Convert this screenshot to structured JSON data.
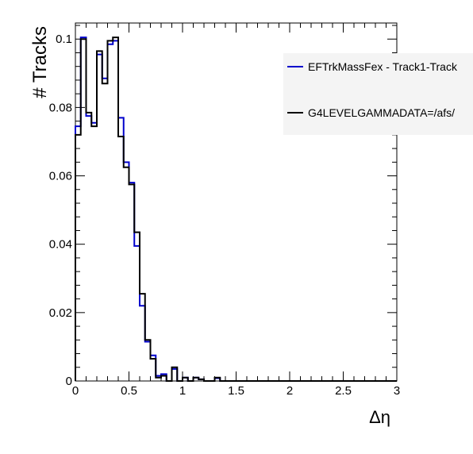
{
  "chart_data": {
    "type": "histogram",
    "xlabel": "Δη",
    "ylabel": "# Tracks",
    "xlim": [
      0,
      3
    ],
    "ylim": [
      0,
      0.1
    ],
    "bin_width": 0.05,
    "x_ticks": [
      "0",
      "0.5",
      "1",
      "1.5",
      "2",
      "2.5",
      "3"
    ],
    "y_ticks": [
      "0",
      "0.02",
      "0.04",
      "0.06",
      "0.08",
      "0.1"
    ],
    "grid": false,
    "legend_position": "right",
    "series": [
      {
        "name": "EFTrkMassFex - Track1-Track",
        "color": "#0000cc",
        "values": [
          0.0745,
          0.1005,
          0.0775,
          0.0755,
          0.0955,
          0.0885,
          0.0985,
          0.0995,
          0.077,
          0.064,
          0.058,
          0.0395,
          0.022,
          0.0115,
          0.0075,
          0.0015,
          0.002,
          0.0,
          0.0035,
          0.0,
          0.001,
          0.0,
          0.001,
          0.0005,
          0.0,
          0.0,
          0.0008,
          0,
          0,
          0,
          0,
          0,
          0,
          0,
          0,
          0,
          0,
          0,
          0,
          0,
          0,
          0,
          0,
          0,
          0,
          0,
          0,
          0,
          0,
          0,
          0,
          0,
          0,
          0,
          0,
          0,
          0,
          0,
          0,
          0
        ]
      },
      {
        "name": "G4LEVELGAMMADATA=/afs/",
        "color": "#000000",
        "values": [
          0.072,
          0.1,
          0.0785,
          0.0745,
          0.0965,
          0.087,
          0.0995,
          0.1005,
          0.0715,
          0.0625,
          0.0575,
          0.0435,
          0.0255,
          0.012,
          0.0065,
          0.001,
          0.0015,
          0.0,
          0.004,
          0.0,
          0.001,
          0.0,
          0.001,
          0.0005,
          0.0,
          0.0,
          0.001,
          0,
          0,
          0,
          0,
          0,
          0,
          0,
          0,
          0,
          0,
          0,
          0,
          0,
          0,
          0,
          0,
          0,
          0,
          0,
          0,
          0,
          0,
          0,
          0,
          0,
          0,
          0,
          0,
          0,
          0,
          0,
          0,
          0
        ]
      }
    ]
  }
}
